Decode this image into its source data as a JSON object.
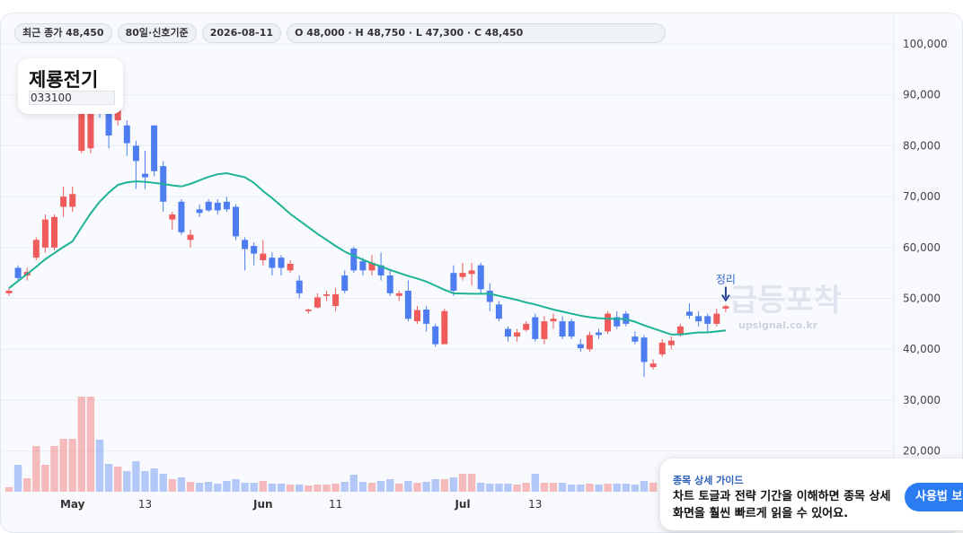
{
  "header": {
    "chips": [
      "최근 종가 48,450",
      "80일·신호기준",
      "2026-08-11",
      "O 48,000 · H 48,750 · L 47,300 · C 48,450"
    ]
  },
  "stock": {
    "name": "제룡전기",
    "code": "033100"
  },
  "watermark": {
    "title": "급등포착",
    "site": "upsignal.co.kr"
  },
  "guide": {
    "title": "종목 상세 가이드",
    "body": "차트 토글과 전략 기간을 이해하면 종목 상세 화면을 훨씬 빠르게 읽을 수 있어요.",
    "button": "사용법 보기"
  },
  "chart_data": {
    "type": "candlestick",
    "categories": [
      null,
      null,
      null,
      null,
      null,
      null,
      null,
      "May",
      null,
      null,
      null,
      null,
      null,
      null,
      null,
      "13",
      null,
      null,
      null,
      null,
      null,
      null,
      null,
      null,
      null,
      null,
      null,
      null,
      "Jun",
      null,
      null,
      null,
      null,
      null,
      null,
      null,
      "11",
      null,
      null,
      null,
      null,
      null,
      null,
      null,
      null,
      null,
      null,
      null,
      null,
      null,
      "Jul",
      null,
      null,
      null,
      null,
      null,
      null,
      null,
      "13",
      null,
      null,
      null,
      null,
      null,
      null,
      null,
      null,
      null,
      null,
      null,
      null,
      null,
      null,
      null,
      null,
      null,
      null,
      null,
      null,
      null
    ],
    "open": [
      51000,
      56000,
      54500,
      58000,
      60000,
      60000,
      68000,
      68000,
      79000,
      79500,
      87500,
      87000,
      85000,
      84000,
      80000,
      74500,
      84000,
      76000,
      65500,
      69000,
      61500,
      67500,
      69000,
      68800,
      69000,
      68000,
      61500,
      60300,
      57500,
      58000,
      58000,
      55500,
      53500,
      47500,
      48200,
      50500,
      48500,
      54500,
      59800,
      57300,
      55500,
      56500,
      54500,
      50500,
      51500,
      45500,
      47800,
      44500,
      41000,
      55000,
      54200,
      54800,
      56500,
      51500,
      48800,
      44000,
      42500,
      43800,
      46300,
      42000,
      45500,
      45500,
      45500,
      41000,
      40000,
      43300,
      43500,
      46300,
      47000,
      42500,
      42300,
      36500,
      39000,
      40800,
      43000,
      47400,
      46500,
      46500,
      45000,
      48000
    ],
    "high": [
      52000,
      56500,
      56000,
      62000,
      66500,
      66500,
      72000,
      72000,
      88000,
      90000,
      90000,
      89000,
      88000,
      85000,
      81000,
      79000,
      84000,
      77000,
      67000,
      69500,
      63500,
      68500,
      69500,
      69500,
      70000,
      68500,
      62000,
      61000,
      61500,
      59000,
      58500,
      57500,
      54500,
      48000,
      51000,
      51500,
      52000,
      55500,
      60200,
      58000,
      58500,
      59000,
      55500,
      51500,
      53500,
      48500,
      48500,
      45000,
      48000,
      56500,
      57000,
      57000,
      57000,
      53000,
      49500,
      44500,
      44000,
      45500,
      47000,
      46500,
      47000,
      46500,
      46000,
      42000,
      43500,
      44000,
      47500,
      47500,
      47500,
      43500,
      42800,
      38000,
      42000,
      42500,
      45000,
      49000,
      47500,
      47000,
      48000,
      48750
    ],
    "low": [
      50500,
      53500,
      53500,
      57500,
      59000,
      59500,
      66000,
      67000,
      78500,
      78500,
      85500,
      79500,
      84000,
      78000,
      71500,
      71500,
      74000,
      67000,
      63500,
      62500,
      60000,
      66000,
      67000,
      66500,
      67000,
      61500,
      55500,
      56500,
      56500,
      54500,
      54500,
      55000,
      50000,
      47000,
      48000,
      49500,
      47500,
      51000,
      55000,
      54500,
      54500,
      53500,
      50500,
      49500,
      45500,
      45000,
      43500,
      40500,
      41000,
      50500,
      53500,
      52500,
      51000,
      47500,
      45500,
      41500,
      41500,
      43500,
      41500,
      41000,
      44000,
      42000,
      42000,
      39500,
      39500,
      42000,
      43000,
      44000,
      44500,
      41000,
      34500,
      36000,
      38500,
      40000,
      42500,
      46000,
      44500,
      43500,
      44500,
      47300
    ],
    "close": [
      51500,
      54000,
      55200,
      61500,
      65500,
      66000,
      70000,
      70500,
      87000,
      87000,
      86500,
      82000,
      87000,
      80500,
      77000,
      73800,
      75000,
      69000,
      66500,
      63000,
      62500,
      66800,
      67300,
      67300,
      67500,
      62200,
      59700,
      58800,
      58800,
      56000,
      56000,
      56800,
      51000,
      47800,
      50200,
      50800,
      50800,
      51500,
      55500,
      55500,
      57000,
      54500,
      51000,
      51000,
      46000,
      47700,
      45000,
      41000,
      47500,
      51500,
      55000,
      55500,
      51800,
      49300,
      46000,
      42500,
      43300,
      45000,
      42000,
      45500,
      46000,
      42500,
      42500,
      40200,
      42800,
      42800,
      47000,
      44500,
      45000,
      41500,
      37500,
      37200,
      41300,
      41700,
      44500,
      46600,
      45500,
      45000,
      47000,
      48450
    ],
    "volume": [
      5,
      30,
      15,
      51,
      30,
      51,
      59,
      59,
      106,
      106,
      58,
      31,
      28,
      23,
      34,
      23,
      26,
      20,
      14,
      16,
      11,
      10,
      11,
      9,
      12,
      14,
      10,
      10,
      12,
      9,
      9,
      8,
      8,
      7,
      8,
      8,
      9,
      11,
      19,
      11,
      10,
      12,
      14,
      9,
      12,
      10,
      11,
      14,
      14,
      16,
      20,
      20,
      10,
      9,
      9,
      9,
      8,
      10,
      20,
      10,
      10,
      10,
      8,
      8,
      9,
      8,
      9,
      9,
      9,
      8,
      12,
      10,
      null,
      null,
      null,
      null,
      null,
      null,
      null,
      null
    ],
    "ma": {
      "color": "#1db394",
      "values": [
        52000,
        53400,
        54800,
        56200,
        57700,
        58900,
        60100,
        61200,
        64000,
        66700,
        69000,
        70800,
        72300,
        72800,
        73000,
        72900,
        72700,
        72500,
        72200,
        72000,
        72500,
        73200,
        73900,
        74400,
        74600,
        74200,
        73800,
        72700,
        71100,
        69700,
        68200,
        66600,
        65300,
        64000,
        62700,
        61500,
        60300,
        59200,
        58400,
        57600,
        56900,
        56300,
        55600,
        55000,
        54400,
        53900,
        53300,
        52500,
        51700,
        51000,
        50950,
        50900,
        50900,
        50900,
        50500,
        50100,
        49700,
        49200,
        48800,
        48300,
        47800,
        47400,
        47000,
        46600,
        46300,
        46100,
        46000,
        46000,
        45900,
        45400,
        44700,
        44100,
        43500,
        42900,
        42900,
        43100,
        43300,
        43300,
        43500,
        43700
      ]
    },
    "up_color": "#ef5b5b",
    "down_color": "#4d7df0",
    "annotation": "정리",
    "ylim": [
      12000,
      106000
    ],
    "yticks": [
      {
        "value": 20000,
        "label": "20,000"
      },
      {
        "value": 30000,
        "label": "30,000"
      },
      {
        "value": 40000,
        "label": "40,000"
      },
      {
        "value": 50000,
        "label": "50,000"
      },
      {
        "value": 60000,
        "label": "60,000"
      },
      {
        "value": 70000,
        "label": "70,000"
      },
      {
        "value": 80000,
        "label": "80,000"
      },
      {
        "value": 90000,
        "label": "90,000"
      },
      {
        "value": 100000,
        "label": "100,000"
      }
    ],
    "grid": true
  }
}
